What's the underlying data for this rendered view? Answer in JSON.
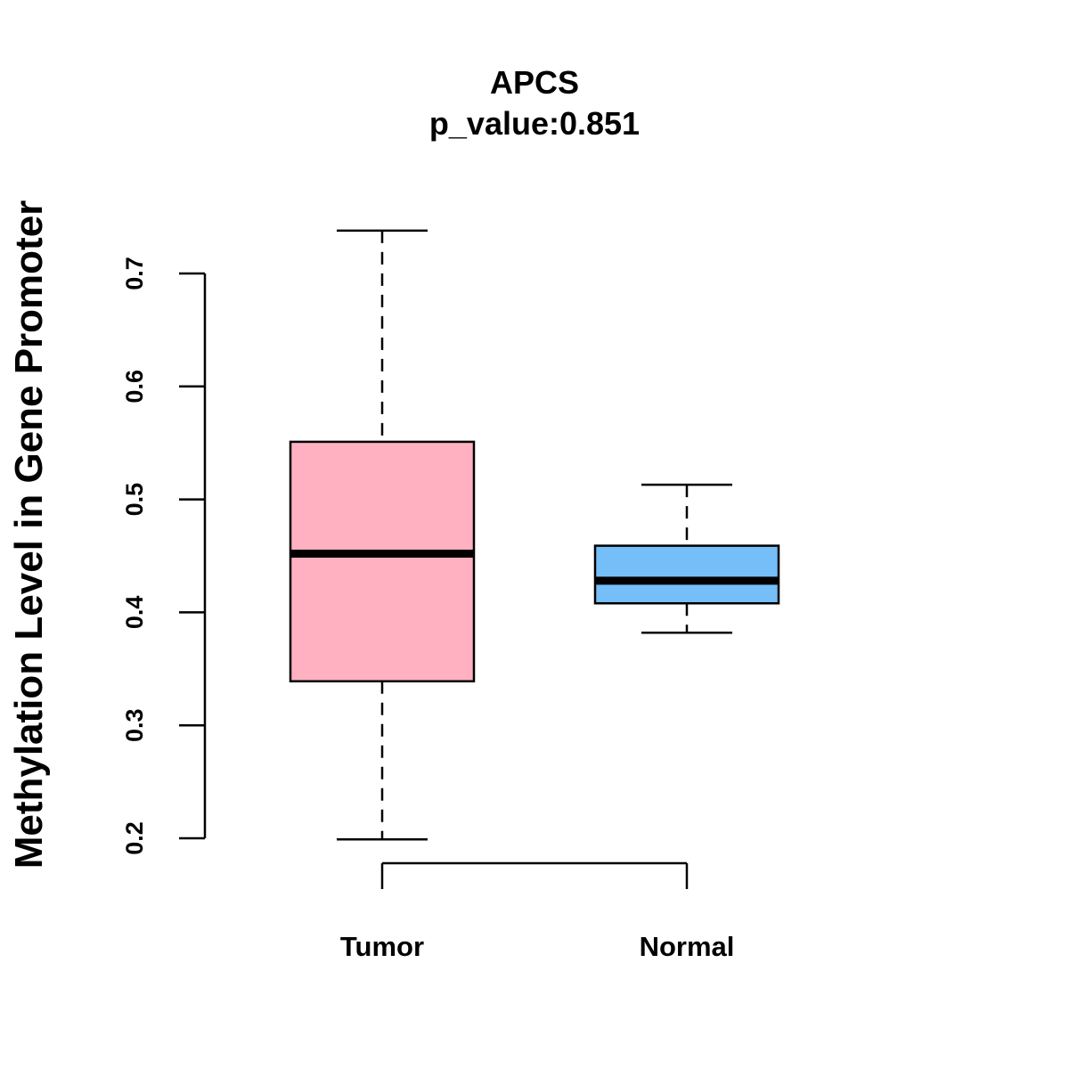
{
  "chart_data": {
    "type": "boxplot",
    "title": "APCS",
    "subtitle": "p_value:0.851",
    "xlabel": "",
    "ylabel": "Methylation Level in Gene Promoter",
    "ylim": [
      0.2,
      0.7
    ],
    "yticks": [
      "0.2",
      "0.3",
      "0.4",
      "0.5",
      "0.6",
      "0.7"
    ],
    "grid": false,
    "categories": [
      "Tumor",
      "Normal"
    ],
    "boxes": [
      {
        "name": "Tumor",
        "color": "#FFB0C1",
        "whisker_low": 0.199,
        "q1": 0.339,
        "median": 0.452,
        "q3": 0.551,
        "whisker_high": 0.738
      },
      {
        "name": "Normal",
        "color": "#75BEF8",
        "whisker_low": 0.382,
        "q1": 0.408,
        "median": 0.428,
        "q3": 0.459,
        "whisker_high": 0.513
      }
    ]
  }
}
